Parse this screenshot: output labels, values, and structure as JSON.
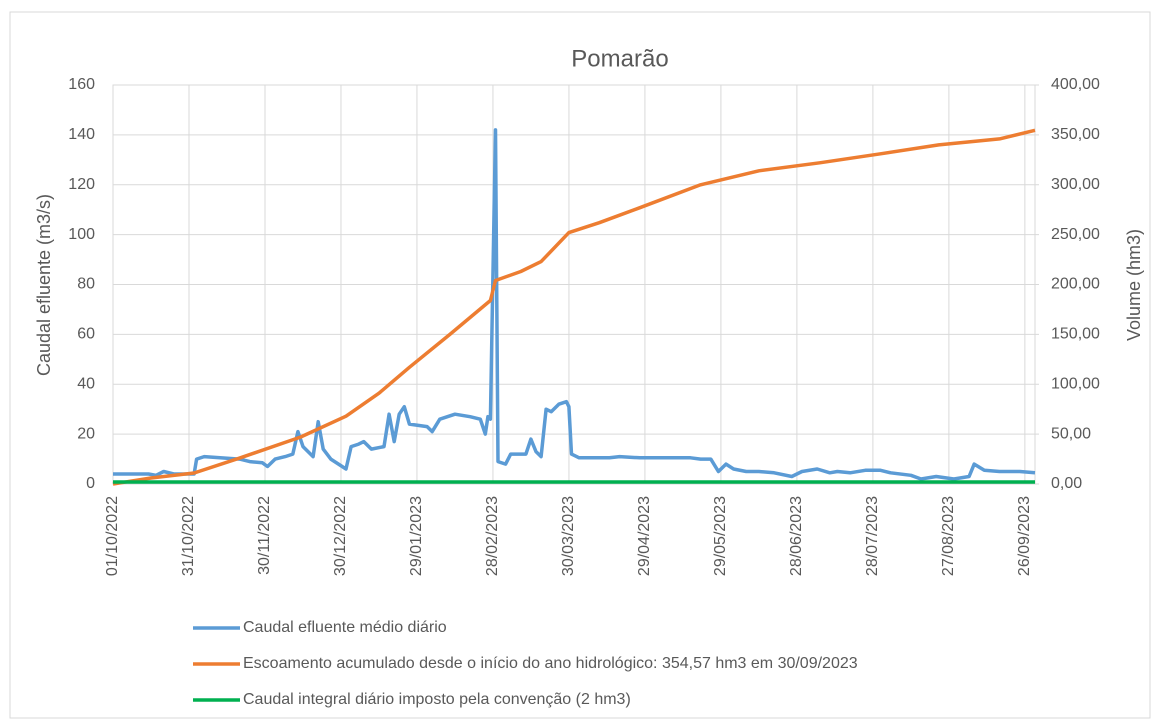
{
  "chart_data": {
    "type": "line",
    "title": "Pomarão",
    "ylabel": "Caudal efluente (m3/s)",
    "y2label": "Volume (hm3)",
    "xlim": [
      "01/10/2022",
      "30/09/2023"
    ],
    "xticks": [
      "01/10/2022",
      "31/10/2022",
      "30/11/2022",
      "30/12/2022",
      "29/01/2023",
      "28/02/2023",
      "30/03/2023",
      "29/04/2023",
      "29/05/2023",
      "28/06/2023",
      "28/07/2023",
      "27/08/2023",
      "26/09/2023"
    ],
    "ylim": [
      0,
      160
    ],
    "yticks": [
      0,
      20,
      40,
      60,
      80,
      100,
      120,
      140,
      160
    ],
    "y2lim": [
      0,
      400
    ],
    "y2ticks": [
      {
        "value": 0,
        "label": "0,00"
      },
      {
        "value": 50,
        "label": "50,00"
      },
      {
        "value": 100,
        "label": "100,00"
      },
      {
        "value": 150,
        "label": "150,00"
      },
      {
        "value": 200,
        "label": "200,00"
      },
      {
        "value": 250,
        "label": "250,00"
      },
      {
        "value": 300,
        "label": "300,00"
      },
      {
        "value": 350,
        "label": "350,00"
      },
      {
        "value": 400,
        "label": "400,00"
      }
    ],
    "grid": true,
    "series": [
      {
        "name": "Caudal efluente médio diário",
        "color": "#5b9bd5",
        "x": [
          "01/10/2022",
          "15/10/2022",
          "18/10/2022",
          "21/10/2022",
          "25/10/2022",
          "02/11/2022",
          "03/11/2022",
          "06/11/2022",
          "20/11/2022",
          "24/11/2022",
          "29/11/2022",
          "01/12/2022",
          "04/12/2022",
          "08/12/2022",
          "11/12/2022",
          "13/12/2022",
          "15/12/2022",
          "19/12/2022",
          "21/12/2022",
          "23/12/2022",
          "26/12/2022",
          "01/01/2023",
          "03/01/2023",
          "06/01/2023",
          "08/01/2023",
          "11/01/2023",
          "16/01/2023",
          "18/01/2023",
          "20/01/2023",
          "22/01/2023",
          "24/01/2023",
          "26/01/2023",
          "02/02/2023",
          "04/02/2023",
          "07/02/2023",
          "13/02/2023",
          "19/02/2023",
          "23/02/2023",
          "25/02/2023",
          "26/02/2023",
          "27/02/2023",
          "01/03/2023",
          "02/03/2023",
          "05/03/2023",
          "07/03/2023",
          "13/03/2023",
          "15/03/2023",
          "17/03/2023",
          "19/03/2023",
          "21/03/2023",
          "23/03/2023",
          "26/03/2023",
          "29/03/2023",
          "30/03/2023",
          "31/03/2023",
          "03/04/2023",
          "15/04/2023",
          "19/04/2023",
          "27/04/2023",
          "17/05/2023",
          "21/05/2023",
          "25/05/2023",
          "28/05/2023",
          "31/05/2023",
          "03/06/2023",
          "08/06/2023",
          "13/06/2023",
          "19/06/2023",
          "26/06/2023",
          "30/06/2023",
          "06/07/2023",
          "11/07/2023",
          "14/07/2023",
          "19/07/2023",
          "25/07/2023",
          "31/07/2023",
          "04/08/2023",
          "12/08/2023",
          "16/08/2023",
          "22/08/2023",
          "29/08/2023",
          "04/09/2023",
          "06/09/2023",
          "10/09/2023",
          "16/09/2023",
          "24/09/2023",
          "30/09/2023"
        ],
        "values": [
          4,
          4,
          3.5,
          5,
          4,
          4,
          10,
          11,
          10,
          9,
          8.5,
          7,
          10,
          11,
          12,
          21,
          15,
          11,
          25,
          14,
          10,
          6,
          15,
          16,
          17,
          14,
          15,
          28,
          17,
          28,
          31,
          24,
          23,
          21,
          26,
          28,
          27,
          26,
          20,
          27,
          26,
          142,
          9,
          8,
          12,
          12,
          18,
          13,
          11,
          30,
          29,
          32,
          33,
          31,
          12,
          10.5,
          10.5,
          11,
          10.5,
          10.5,
          10,
          10,
          5,
          8,
          6,
          5,
          5,
          4.5,
          3,
          5,
          6,
          4.5,
          5,
          4.5,
          5.5,
          5.5,
          4.5,
          3.5,
          2,
          3,
          2,
          3,
          8,
          5.5,
          5,
          5,
          4.5
        ]
      },
      {
        "name": "Escoamento acumulado desde o início do ano hidrológico: 354,57 hm3 em 30/09/2023",
        "color": "#ed7d31",
        "axis": "y2",
        "x": [
          "01/10/2022",
          "16/10/2022",
          "02/11/2022",
          "20/11/2022",
          "14/12/2022",
          "01/01/2023",
          "14/01/2023",
          "26/01/2023",
          "11/02/2023",
          "27/02/2023",
          "01/03/2023",
          "11/03/2023",
          "19/03/2023",
          "30/03/2023",
          "11/04/2023",
          "27/04/2023",
          "21/05/2023",
          "13/06/2023",
          "07/07/2023",
          "31/07/2023",
          "23/08/2023",
          "16/09/2023",
          "30/09/2023"
        ],
        "values": [
          0,
          6,
          11,
          26,
          47,
          68,
          91,
          117,
          150,
          184,
          204,
          213,
          223,
          252,
          262,
          277,
          300,
          314,
          322,
          331,
          340,
          346,
          354.57
        ]
      },
      {
        "name": "Caudal integral diário imposto pela convenção (2 hm3)",
        "color": "#00b050",
        "axis": "y2",
        "x": [
          "01/10/2022",
          "30/09/2023"
        ],
        "values": [
          2,
          2
        ]
      }
    ]
  }
}
